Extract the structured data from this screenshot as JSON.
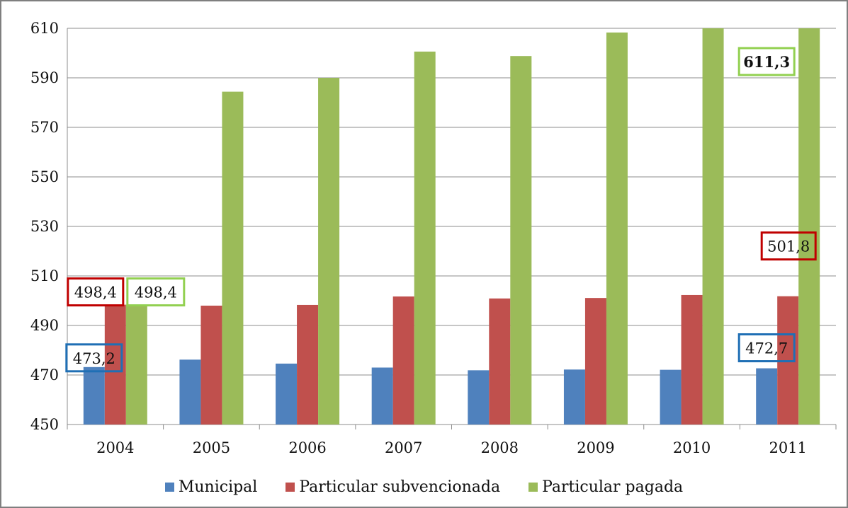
{
  "chart_data": {
    "type": "bar",
    "title": "",
    "xlabel": "",
    "ylabel": "",
    "categories": [
      "2004",
      "2005",
      "2006",
      "2007",
      "2008",
      "2009",
      "2010",
      "2011"
    ],
    "series": [
      {
        "name": "Municipal",
        "color": "#4F81BD",
        "values": [
          473.2,
          476.2,
          474.6,
          473.0,
          471.9,
          472.2,
          472.1,
          472.7
        ]
      },
      {
        "name": "Particular subvencionada",
        "color": "#C0504D",
        "values": [
          498.4,
          498.0,
          498.3,
          501.7,
          500.9,
          501.1,
          502.3,
          501.8
        ]
      },
      {
        "name": "Particular pagada",
        "color": "#9BBB59",
        "values": [
          498.4,
          584.4,
          590.0,
          600.6,
          598.8,
          608.3,
          611.0,
          611.3
        ]
      }
    ],
    "ylim": [
      450,
      610
    ],
    "yticks": [
      "450",
      "470",
      "490",
      "510",
      "530",
      "550",
      "570",
      "590",
      "610"
    ],
    "grid": true,
    "legend": "bottom",
    "annotations": [
      {
        "text": "473,2",
        "category": "2004",
        "series": "Municipal",
        "box_color": "#1F6FB5"
      },
      {
        "text": "498,4",
        "category": "2004",
        "series": "Particular subvencionada",
        "box_color": "#C00000"
      },
      {
        "text": "498,4",
        "category": "2004",
        "series": "Particular pagada",
        "box_color": "#92D050"
      },
      {
        "text": "472,7",
        "category": "2011",
        "series": "Municipal",
        "box_color": "#1F6FB5"
      },
      {
        "text": "501,8",
        "category": "2011",
        "series": "Particular subvencionada",
        "box_color": "#C00000"
      },
      {
        "text": "611,3",
        "category": "2011",
        "series": "Particular pagada",
        "box_color": "#92D050",
        "bold": true
      }
    ]
  }
}
